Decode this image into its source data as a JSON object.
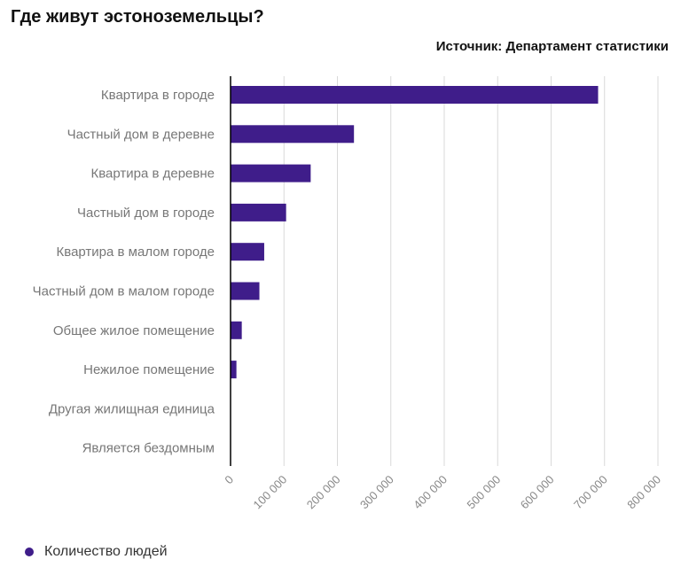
{
  "header": {
    "title": "Где живут эстоноземельцы?",
    "source": "Источник: Департамент статистики"
  },
  "legend": {
    "label": "Количество людей"
  },
  "colors": {
    "bar": "#3f1d8a",
    "grid": "#d9d9d9",
    "axis": "#000000"
  },
  "chart_data": {
    "type": "bar",
    "orientation": "horizontal",
    "categories": [
      "Квартира в городе",
      "Частный дом в деревне",
      "Квартира в деревне",
      "Частный дом в городе",
      "Квартира в малом городе",
      "Частный дом в малом городе",
      "Общее жилое помещение",
      "Нежилое помещение",
      "Другая жилищная единица",
      "Является бездомным"
    ],
    "series": [
      {
        "name": "Количество людей",
        "values": [
          688000,
          231000,
          150000,
          104000,
          63000,
          54000,
          21000,
          11000,
          500,
          200
        ]
      }
    ],
    "xlim": [
      0,
      800000
    ],
    "ticks": [
      0,
      100000,
      200000,
      300000,
      400000,
      500000,
      600000,
      700000,
      800000
    ],
    "tick_labels": [
      "0",
      "100 000",
      "200 000",
      "300 000",
      "400 000",
      "500 000",
      "600 000",
      "700 000",
      "800 000"
    ],
    "grid": true,
    "legend_position": "bottom-left"
  }
}
